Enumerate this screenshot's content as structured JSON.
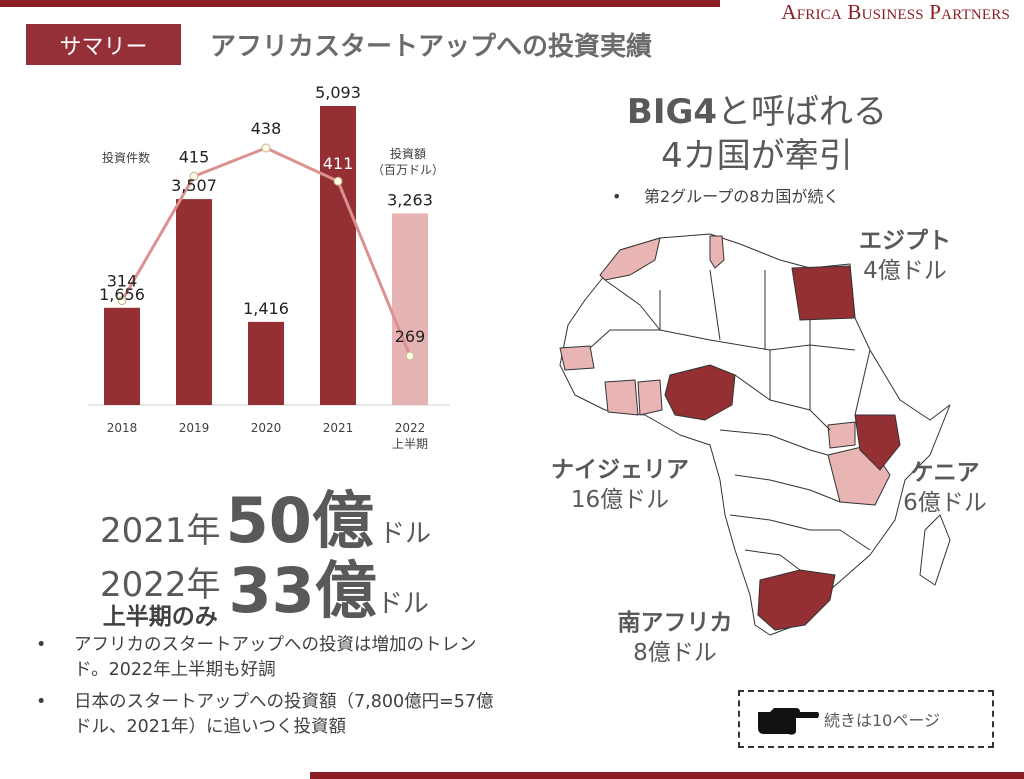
{
  "header": {
    "brand": "Africa Business Partners",
    "tag": "サマリー",
    "title": "アフリカスタートアップへの投資実績"
  },
  "chart_data": {
    "type": "bar",
    "categories": [
      "2018",
      "2019",
      "2020",
      "2021",
      "2022\n上半期"
    ],
    "category_lines": [
      [
        "2018"
      ],
      [
        "2019"
      ],
      [
        "2020"
      ],
      [
        "2021"
      ],
      [
        "2022",
        "上半期"
      ]
    ],
    "series": [
      {
        "name": "投資額（百万ドル）",
        "name_lines": [
          "投資額",
          "（百万ドル）"
        ],
        "type": "bar",
        "values": [
          1656,
          3507,
          1416,
          5093,
          3263
        ],
        "value_labels": [
          "1,656",
          "3,507",
          "1,416",
          "5,093",
          "3,263"
        ],
        "colors": [
          "#943034",
          "#943034",
          "#943034",
          "#943034",
          "#e5b3b3"
        ]
      },
      {
        "name": "投資件数",
        "type": "line",
        "values": [
          314,
          415,
          438,
          411,
          269
        ],
        "value_labels": [
          "314",
          "415",
          "438",
          "411",
          "269"
        ],
        "color": "#dc9191"
      }
    ],
    "ylim": [
      0,
      5093
    ],
    "ylim_count": [
      0,
      650
    ],
    "grid": false
  },
  "highlights": {
    "y2021": {
      "year": "2021年",
      "amount": "50億",
      "unit": "ドル"
    },
    "y2022": {
      "year": "2022年",
      "sub": "上半期のみ",
      "amount": "33億",
      "unit": "ドル"
    }
  },
  "bullets": [
    "アフリカのスタートアップへの投資は増加のトレンド。2022年上半期も好調",
    "日本のスタートアップへの投資額（7,800億円=57億ドル、2021年）に追いつく投資額"
  ],
  "big4": {
    "title_bold": "BIG4",
    "title_rest": "と呼ばれる",
    "title_line2": "4カ国が牽引",
    "note": "第2グループの8カ国が続く"
  },
  "countries": {
    "egypt": {
      "name": "エジプト",
      "amount": "4億ドル"
    },
    "nigeria": {
      "name": "ナイジェリア",
      "amount": "16億ドル"
    },
    "kenya": {
      "name": "ケニア",
      "amount": "6億ドル"
    },
    "south_africa": {
      "name": "南アフリカ",
      "amount": "8億ドル"
    }
  },
  "map_colors": {
    "big4": "#943034",
    "group2": "#e8b4b4",
    "other": "#ffffff",
    "border": "#333333"
  },
  "next": {
    "label": "続きは10ページ",
    "icon": "pointing-hand-icon"
  }
}
